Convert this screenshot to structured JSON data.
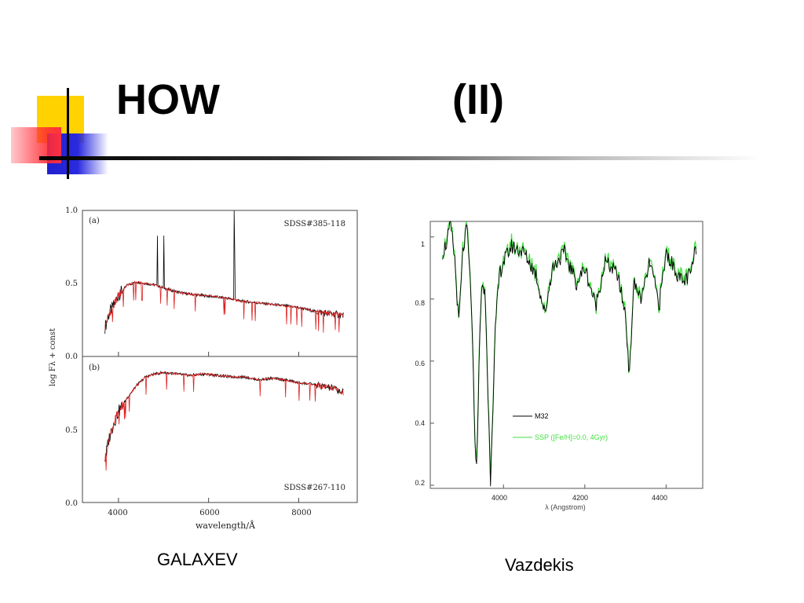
{
  "slide": {
    "title_left": "HOW",
    "title_right": "(II)",
    "caption_left": "GALAXEV",
    "caption_right": "Vazdekis",
    "colors": {
      "accent_yellow": "#ffd200",
      "accent_red": "#ff3040",
      "accent_blue": "#2020d0"
    }
  },
  "chart_data": [
    {
      "type": "line",
      "panels": [
        {
          "label": "(a)",
          "id_label": "SDSS#385-118",
          "ylim": [
            0.0,
            1.0
          ],
          "yticks": [
            "1.0",
            "0.5",
            "0.0"
          ]
        },
        {
          "label": "(b)",
          "id_label": "SDSS#267-110",
          "ylim": [
            0.0,
            1.0
          ],
          "yticks": [
            "0.5",
            "0.0"
          ]
        }
      ],
      "xlabel": "wavelength/Å",
      "ylabel": "log Fλ + const",
      "xlim": [
        3200,
        9300
      ],
      "xticks": [
        "4000",
        "6000",
        "8000"
      ],
      "xtick_values": [
        4000,
        6000,
        8000
      ],
      "series": [
        {
          "color": "#000000"
        },
        {
          "color": "#e02020"
        }
      ],
      "panel_a_x": [
        3700,
        3800,
        3900,
        4000,
        4200,
        4400,
        4600,
        4800,
        5000,
        5200,
        5500,
        5800,
        6100,
        6400,
        6700,
        7000,
        7300,
        7600,
        7900,
        8200,
        8500,
        8800,
        9000
      ],
      "panel_a_y": [
        0.2,
        0.3,
        0.35,
        0.42,
        0.49,
        0.51,
        0.5,
        0.49,
        0.47,
        0.45,
        0.43,
        0.42,
        0.41,
        0.4,
        0.38,
        0.37,
        0.36,
        0.35,
        0.34,
        0.32,
        0.3,
        0.29,
        0.28
      ],
      "panel_b_x": [
        3700,
        3800,
        3900,
        4000,
        4200,
        4400,
        4600,
        4800,
        5000,
        5300,
        5600,
        5900,
        6200,
        6500,
        6800,
        7100,
        7400,
        7700,
        8000,
        8300,
        8600,
        8800,
        9000
      ],
      "panel_b_y": [
        0.3,
        0.45,
        0.55,
        0.62,
        0.72,
        0.8,
        0.86,
        0.88,
        0.89,
        0.88,
        0.87,
        0.88,
        0.87,
        0.86,
        0.86,
        0.84,
        0.85,
        0.84,
        0.82,
        0.81,
        0.79,
        0.78,
        0.75
      ]
    },
    {
      "type": "line",
      "xlabel": "λ (Angstrom)",
      "xlim": [
        3820,
        4490
      ],
      "ylim": [
        0.19,
        1.05
      ],
      "xticks": [
        "4000",
        "4200",
        "4400"
      ],
      "xtick_values": [
        4000,
        4200,
        4400
      ],
      "yticks": [
        "1",
        "0.8",
        "0.6",
        "0.4",
        "0.2"
      ],
      "ytick_values": [
        1.0,
        0.8,
        0.6,
        0.4,
        0.2
      ],
      "legend_position": "lower-center",
      "series": [
        {
          "name": "M32",
          "color": "#000000"
        },
        {
          "name": "SSP ([Fe/H]=0.0, 4Gyr)",
          "color": "#40e040"
        }
      ],
      "x": [
        3850,
        3860,
        3870,
        3880,
        3890,
        3900,
        3910,
        3920,
        3933,
        3945,
        3955,
        3968,
        3980,
        3990,
        4000,
        4020,
        4050,
        4080,
        4102,
        4120,
        4150,
        4180,
        4200,
        4227,
        4250,
        4280,
        4300,
        4310,
        4320,
        4340,
        4360,
        4383,
        4400,
        4420,
        4440,
        4460,
        4475
      ],
      "y": [
        0.95,
        0.98,
        1.04,
        0.93,
        0.72,
        0.95,
        1.03,
        0.82,
        0.22,
        0.83,
        0.82,
        0.22,
        0.7,
        0.88,
        0.92,
        0.97,
        0.95,
        0.88,
        0.75,
        0.9,
        0.95,
        0.85,
        0.9,
        0.78,
        0.92,
        0.88,
        0.75,
        0.55,
        0.85,
        0.8,
        0.92,
        0.78,
        0.95,
        0.9,
        0.85,
        0.88,
        0.97
      ]
    }
  ]
}
